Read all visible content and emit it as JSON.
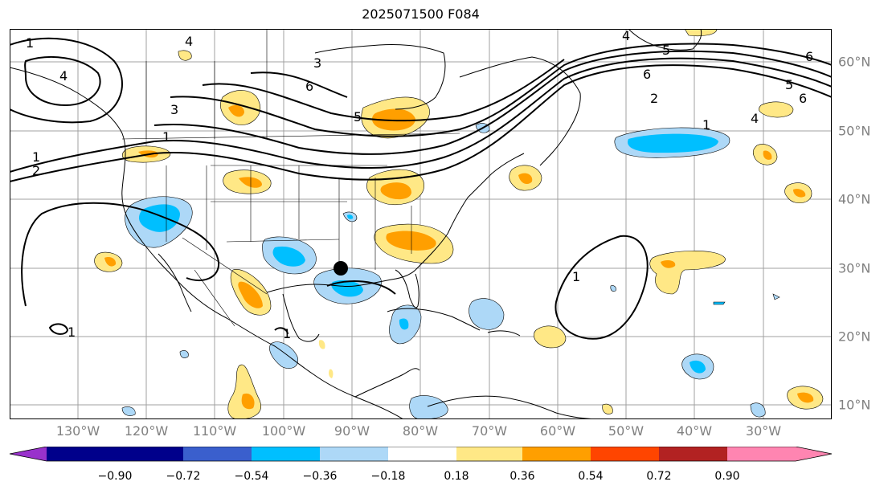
{
  "title": "2025071500 F084",
  "longitude_labels": [
    "130°W",
    "120°W",
    "110°W",
    "100°W",
    "90°W",
    "80°W",
    "70°W",
    "60°W",
    "50°W",
    "40°W",
    "30°W"
  ],
  "latitude_labels": [
    "60°N",
    "50°N",
    "40°N",
    "30°N",
    "20°N",
    "10°N"
  ],
  "colorbar": {
    "colors": [
      "#9932cc",
      "#00008b",
      "#3a5fcd",
      "#00bfff",
      "#add8f7",
      "#ffffff",
      "#ffe886",
      "#ff9f00",
      "#ff4500",
      "#b22222",
      "#ff85b1"
    ],
    "tick_labels": [
      "−0.90",
      "−0.72",
      "−0.54",
      "−0.36",
      "−0.18",
      "0.18",
      "0.36",
      "0.54",
      "0.72",
      "0.90"
    ]
  },
  "contour_labels": [
    "1",
    "4",
    "4",
    "3",
    "6",
    "5",
    "5",
    "6",
    "5",
    "6",
    "6",
    "2",
    "1",
    "4",
    "4",
    "3",
    "2",
    "1",
    "1",
    "1",
    "1",
    "1"
  ]
}
